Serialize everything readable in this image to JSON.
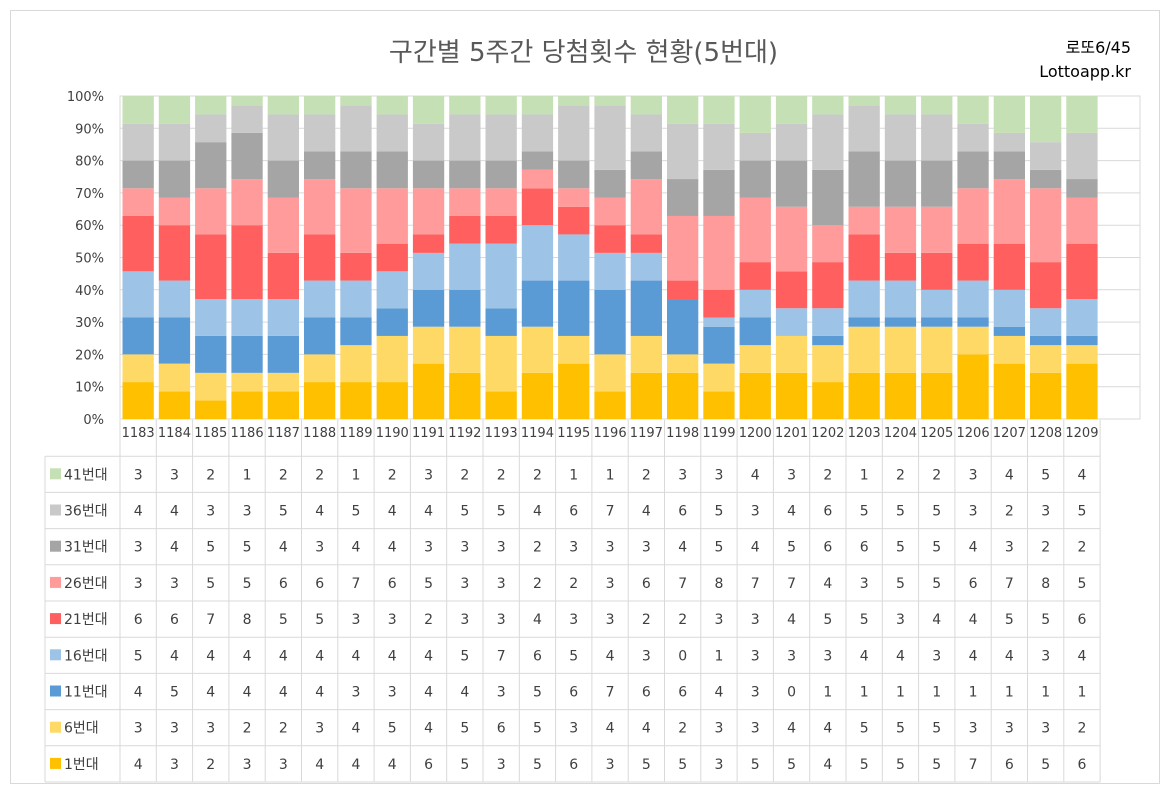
{
  "header": {
    "title": "구간별 5주간 당첨횟수 현황(5번대)",
    "brand_line1": "로또6/45",
    "brand_line2": "Lottoapp.kr"
  },
  "chart_data": {
    "type": "bar",
    "stacked": true,
    "percent_stacked": true,
    "categories": [
      "1183",
      "1184",
      "1185",
      "1186",
      "1187",
      "1188",
      "1189",
      "1190",
      "1191",
      "1192",
      "1193",
      "1194",
      "1195",
      "1196",
      "1197",
      "1198",
      "1199",
      "1200",
      "1201",
      "1202",
      "1203",
      "1204",
      "1205",
      "1206",
      "1207",
      "1208",
      "1209"
    ],
    "y_tick_labels": [
      "0%",
      "10%",
      "20%",
      "30%",
      "40%",
      "50%",
      "60%",
      "70%",
      "80%",
      "90%",
      "100%"
    ],
    "ylim": [
      0,
      100
    ],
    "grid": true,
    "legend_placement": "data-table-left",
    "series": [
      {
        "name": "1번대",
        "color": "#ffc000",
        "values": [
          4,
          3,
          2,
          3,
          3,
          4,
          4,
          4,
          6,
          5,
          3,
          5,
          6,
          3,
          5,
          5,
          3,
          5,
          5,
          4,
          5,
          5,
          5,
          7,
          6,
          5,
          6
        ]
      },
      {
        "name": "6번대",
        "color": "#ffd966",
        "values": [
          3,
          3,
          3,
          2,
          2,
          3,
          4,
          5,
          4,
          5,
          6,
          5,
          3,
          4,
          4,
          2,
          3,
          3,
          4,
          4,
          5,
          5,
          5,
          3,
          3,
          3,
          2
        ]
      },
      {
        "name": "11번대",
        "color": "#5b9bd5",
        "values": [
          4,
          5,
          4,
          4,
          4,
          4,
          3,
          3,
          4,
          4,
          3,
          5,
          6,
          7,
          6,
          6,
          4,
          3,
          0,
          1,
          1,
          1,
          1,
          1,
          1,
          1,
          1
        ]
      },
      {
        "name": "16번대",
        "color": "#9dc3e6",
        "values": [
          5,
          4,
          4,
          4,
          4,
          4,
          4,
          4,
          4,
          5,
          7,
          6,
          5,
          4,
          3,
          0,
          1,
          3,
          3,
          3,
          4,
          4,
          3,
          4,
          4,
          3,
          4
        ]
      },
      {
        "name": "21번대",
        "color": "#ff5f5f",
        "values": [
          6,
          6,
          7,
          8,
          5,
          5,
          3,
          3,
          2,
          3,
          3,
          4,
          3,
          3,
          2,
          2,
          3,
          3,
          4,
          5,
          5,
          3,
          4,
          4,
          5,
          5,
          6
        ]
      },
      {
        "name": "26번대",
        "color": "#ff9b9b",
        "values": [
          3,
          3,
          5,
          5,
          6,
          6,
          7,
          6,
          5,
          3,
          3,
          2,
          2,
          3,
          6,
          7,
          8,
          7,
          7,
          4,
          3,
          5,
          5,
          6,
          7,
          8,
          5
        ]
      },
      {
        "name": "31번대",
        "color": "#a5a5a5",
        "values": [
          3,
          4,
          5,
          5,
          4,
          3,
          4,
          4,
          3,
          3,
          3,
          2,
          3,
          3,
          3,
          4,
          5,
          4,
          5,
          6,
          6,
          5,
          5,
          4,
          3,
          2,
          2
        ]
      },
      {
        "name": "36번대",
        "color": "#c9c9c9",
        "values": [
          4,
          4,
          3,
          3,
          5,
          4,
          5,
          4,
          4,
          5,
          5,
          4,
          6,
          7,
          4,
          6,
          5,
          3,
          4,
          6,
          5,
          5,
          5,
          3,
          2,
          3,
          5
        ]
      },
      {
        "name": "41번대",
        "color": "#c5e0b4",
        "values": [
          3,
          3,
          2,
          1,
          2,
          2,
          1,
          2,
          3,
          2,
          2,
          2,
          1,
          1,
          2,
          3,
          3,
          4,
          3,
          2,
          1,
          2,
          2,
          3,
          4,
          5,
          4
        ]
      }
    ]
  }
}
